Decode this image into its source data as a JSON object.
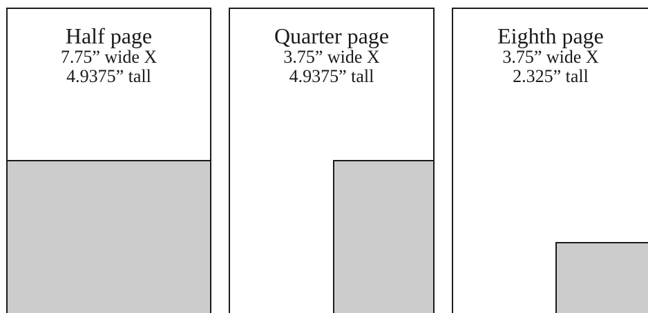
{
  "panels": [
    {
      "title": "Half page",
      "line1": "7.75” wide X",
      "line2": "4.9375” tall"
    },
    {
      "title": "Quarter page",
      "line1": "3.75” wide X",
      "line2": "4.9375” tall"
    },
    {
      "title": "Eighth page",
      "line1": "3.75” wide X",
      "line2": "2.325” tall"
    }
  ],
  "colors": {
    "ad_fill": "#cccccc",
    "border": "#1a1a1a",
    "page": "#ffffff"
  }
}
